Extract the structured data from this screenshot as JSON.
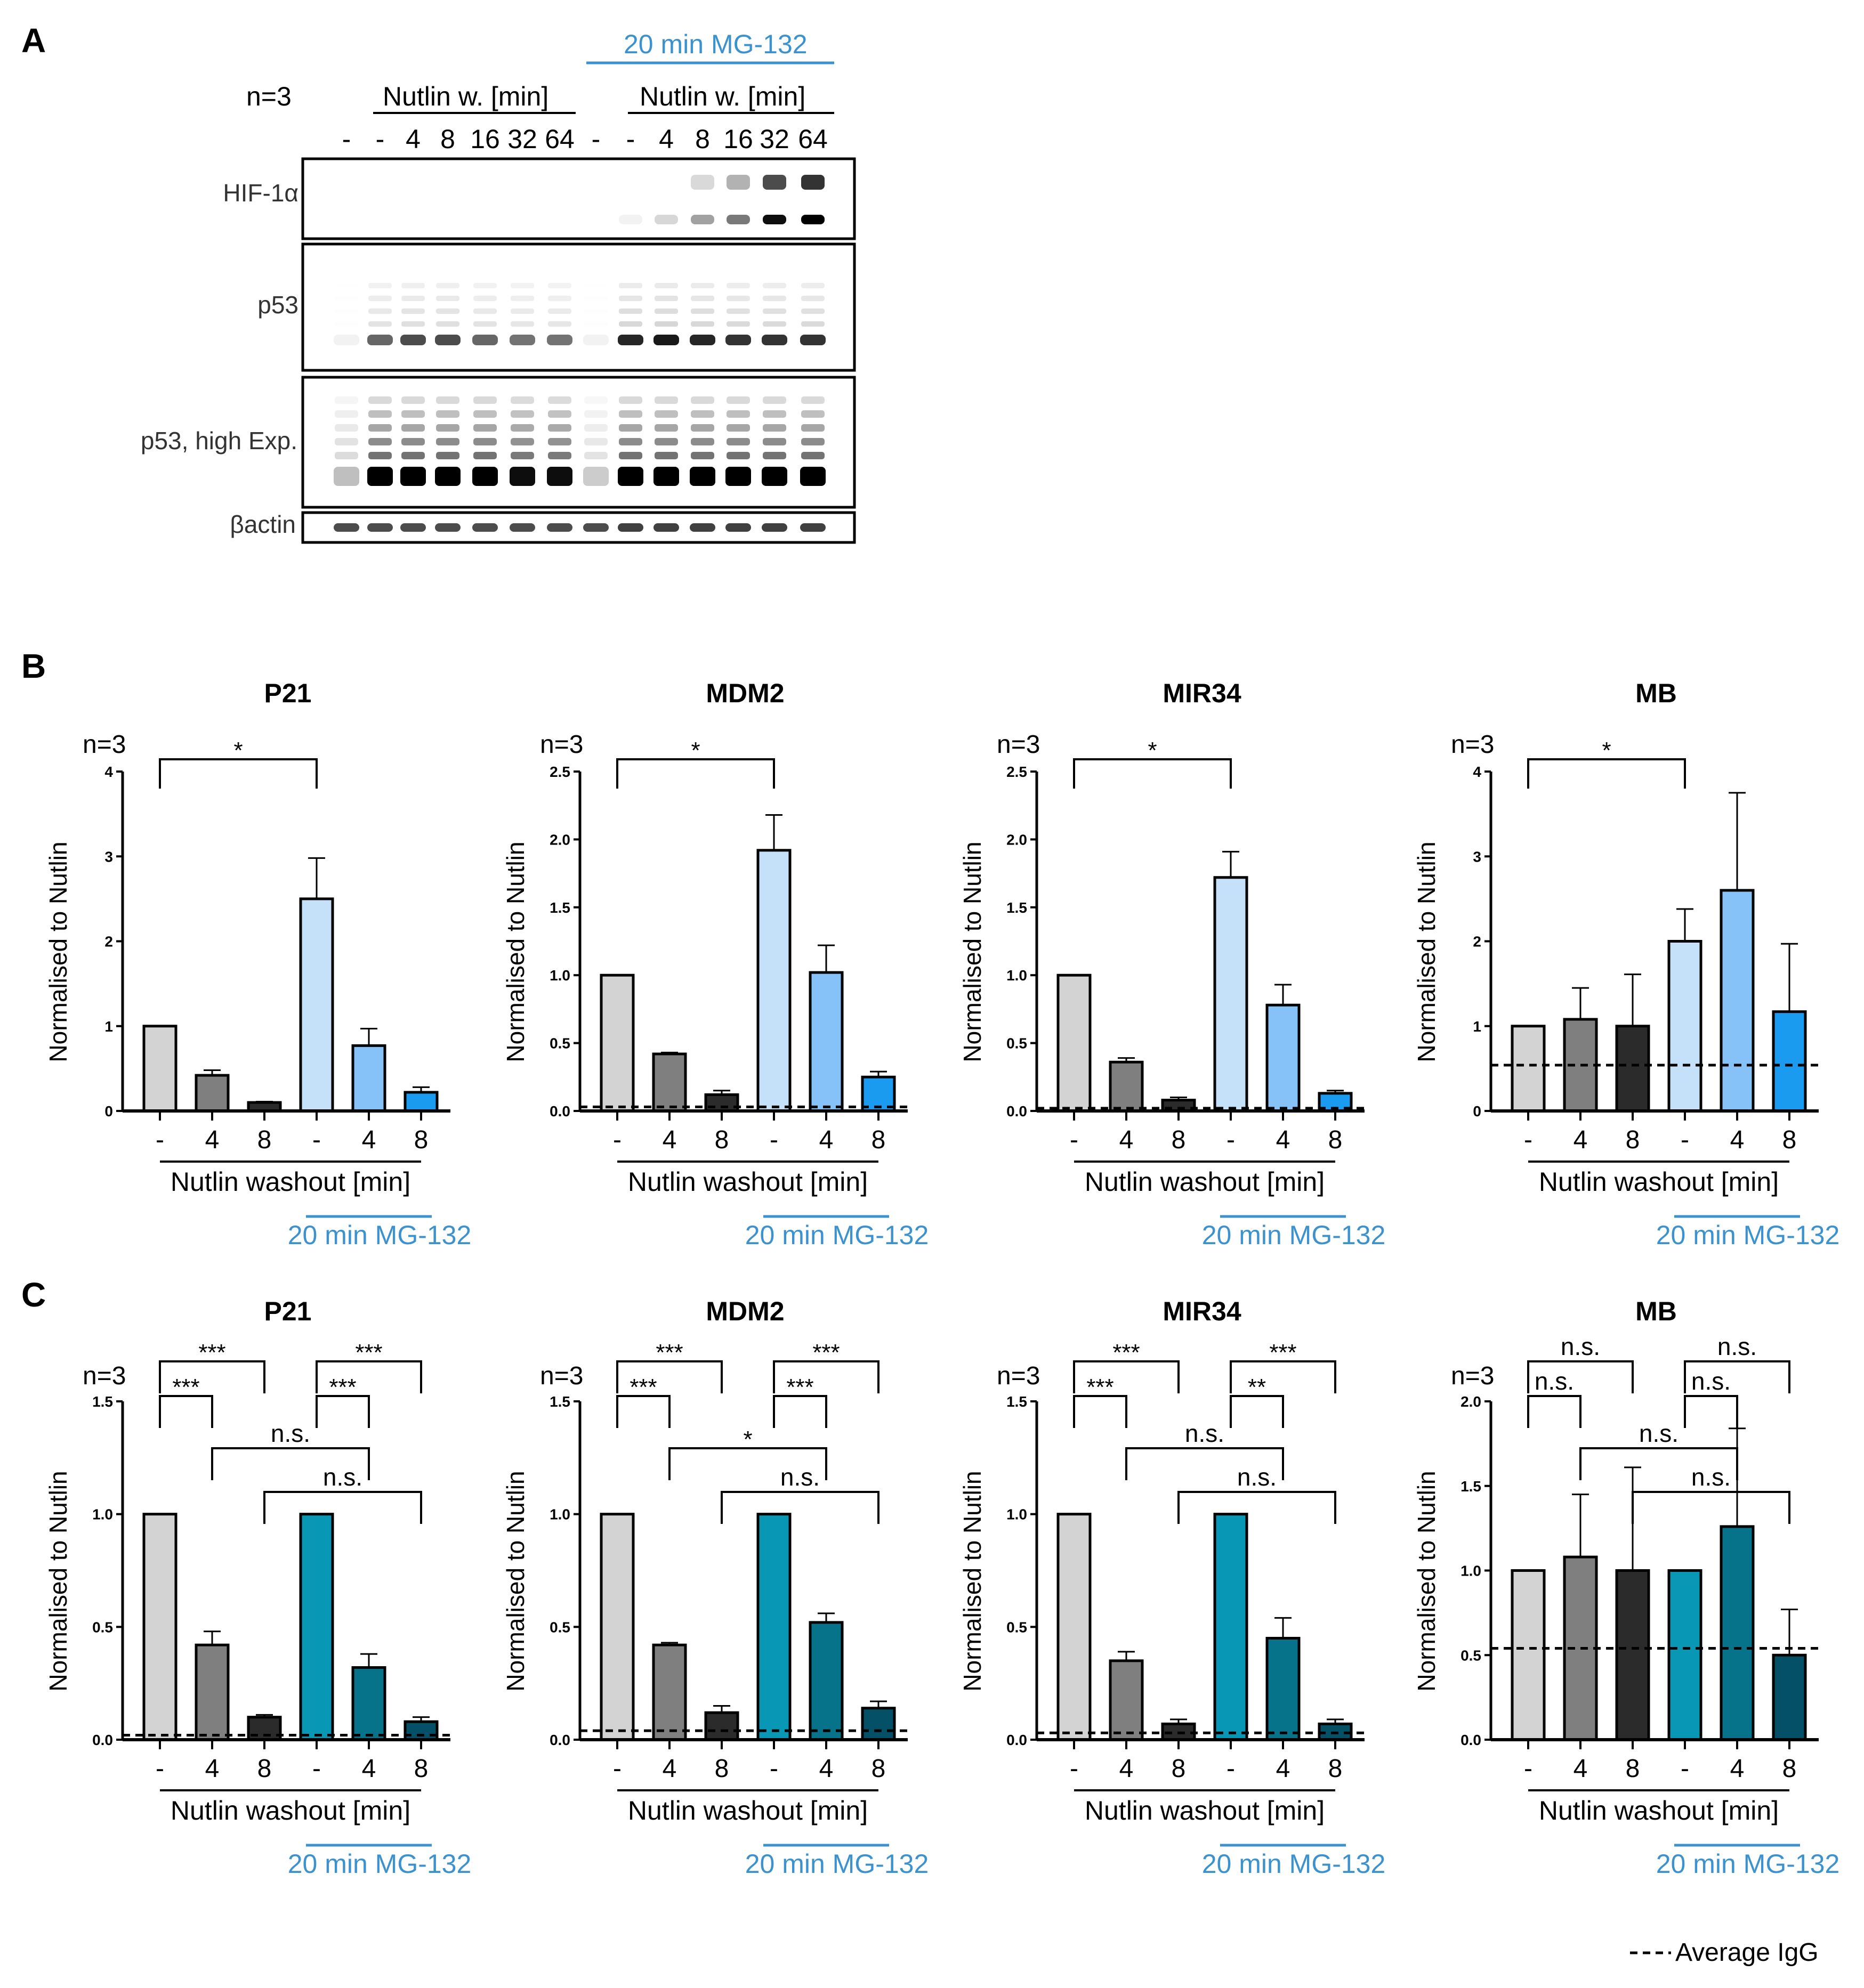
{
  "panel_labels": {
    "A": "A",
    "B": "B",
    "C": "C"
  },
  "blot": {
    "mg_label": "20 min MG-132",
    "n_label": "n=3",
    "group_label": "Nutlin w. [min]",
    "lane_labels": [
      "-",
      "-",
      "4",
      "8",
      "16",
      "32",
      "64",
      "-",
      "-",
      "4",
      "8",
      "16",
      "32",
      "64"
    ],
    "rows": [
      {
        "label": "HIF-1α"
      },
      {
        "label": "p53"
      },
      {
        "label": "p53, high Exp."
      },
      {
        "label": "βactin"
      }
    ],
    "intensity": {
      "hif": [
        0,
        0,
        0,
        0,
        0,
        0,
        0,
        0,
        0.05,
        0.15,
        0.35,
        0.5,
        0.9,
        1.0
      ],
      "p53": [
        0.05,
        0.6,
        0.7,
        0.7,
        0.6,
        0.55,
        0.55,
        0.05,
        0.85,
        0.9,
        0.85,
        0.8,
        0.8,
        0.8
      ],
      "p53h": [
        0.25,
        1.0,
        1.0,
        1.0,
        1.0,
        0.95,
        0.95,
        0.2,
        1.0,
        1.0,
        1.0,
        1.0,
        1.0,
        1.0
      ],
      "actin": [
        0.7,
        0.7,
        0.7,
        0.7,
        0.7,
        0.7,
        0.7,
        0.7,
        0.75,
        0.75,
        0.75,
        0.75,
        0.75,
        0.75
      ]
    }
  },
  "shared": {
    "ylabel": "Normalised to Nutlin",
    "xlabel": "Nutlin washout [min]",
    "mg_label": "20 min MG-132",
    "n_label": "n=3",
    "categories": [
      "-",
      "4",
      "8",
      "-",
      "4",
      "8"
    ],
    "legend_label": "Average IgG"
  },
  "chart_data": [
    {
      "panel": "B",
      "type": "bar",
      "title": "P21",
      "ylim": [
        0,
        4
      ],
      "yticks": [
        "0",
        "1",
        "2",
        "3",
        "4"
      ],
      "values": [
        1.0,
        0.42,
        0.1,
        2.5,
        0.77,
        0.22
      ],
      "errors": [
        0,
        0.06,
        0.01,
        0.48,
        0.2,
        0.06
      ],
      "igg": null,
      "colors": [
        "#d3d3d3",
        "#7f7f7f",
        "#2b2b2b",
        "#c5e1fa",
        "#86c1f7",
        "#1a9bf0"
      ],
      "sig": [
        {
          "from": 0,
          "to": 3,
          "label": "*",
          "level": 0
        }
      ]
    },
    {
      "panel": "B",
      "type": "bar",
      "title": "MDM2",
      "ylim": [
        0,
        2.5
      ],
      "yticks": [
        "0.0",
        "0.5",
        "1.0",
        "1.5",
        "2.0",
        "2.5"
      ],
      "values": [
        1.0,
        0.42,
        0.12,
        1.92,
        1.02,
        0.25
      ],
      "errors": [
        0,
        0.01,
        0.03,
        0.26,
        0.2,
        0.04
      ],
      "igg": 0.03,
      "colors": [
        "#d3d3d3",
        "#7f7f7f",
        "#2b2b2b",
        "#c5e1fa",
        "#86c1f7",
        "#1a9bf0"
      ],
      "sig": [
        {
          "from": 0,
          "to": 3,
          "label": "*",
          "level": 0
        }
      ]
    },
    {
      "panel": "B",
      "type": "bar",
      "title": "MIR34",
      "ylim": [
        0,
        2.5
      ],
      "yticks": [
        "0.0",
        "0.5",
        "1.0",
        "1.5",
        "2.0",
        "2.5"
      ],
      "values": [
        1.0,
        0.36,
        0.08,
        1.72,
        0.78,
        0.13
      ],
      "errors": [
        0,
        0.03,
        0.02,
        0.19,
        0.15,
        0.02
      ],
      "igg": 0.02,
      "colors": [
        "#d3d3d3",
        "#7f7f7f",
        "#2b2b2b",
        "#c5e1fa",
        "#86c1f7",
        "#1a9bf0"
      ],
      "sig": [
        {
          "from": 0,
          "to": 3,
          "label": "*",
          "level": 0
        }
      ]
    },
    {
      "panel": "B",
      "type": "bar",
      "title": "MB",
      "ylim": [
        0,
        4
      ],
      "yticks": [
        "0",
        "1",
        "2",
        "3",
        "4"
      ],
      "values": [
        1.0,
        1.08,
        1.0,
        2.0,
        2.6,
        1.17
      ],
      "errors": [
        0,
        0.37,
        0.61,
        0.38,
        1.15,
        0.8
      ],
      "igg": 0.54,
      "colors": [
        "#d3d3d3",
        "#7f7f7f",
        "#2b2b2b",
        "#c5e1fa",
        "#86c1f7",
        "#1a9bf0"
      ],
      "sig": [
        {
          "from": 0,
          "to": 3,
          "label": "*",
          "level": 0
        }
      ]
    },
    {
      "panel": "C",
      "type": "bar",
      "title": "P21",
      "ylim": [
        0,
        1.5
      ],
      "yticks": [
        "0.0",
        "0.5",
        "1.0",
        "1.5"
      ],
      "values": [
        1.0,
        0.42,
        0.1,
        1.0,
        0.32,
        0.08
      ],
      "errors": [
        0,
        0.06,
        0.01,
        0,
        0.06,
        0.02
      ],
      "igg": 0.02,
      "colors": [
        "#d3d3d3",
        "#7f7f7f",
        "#2b2b2b",
        "#0898b5",
        "#07738a",
        "#045066"
      ],
      "sig": [
        {
          "from": 0,
          "to": 2,
          "label": "***",
          "level": 2
        },
        {
          "from": 0,
          "to": 1,
          "label": "***",
          "level": 1
        },
        {
          "from": 3,
          "to": 5,
          "label": "***",
          "level": 2
        },
        {
          "from": 3,
          "to": 4,
          "label": "***",
          "level": 1
        },
        {
          "from": 1,
          "to": 4,
          "label": "n.s.",
          "level": 0.5
        },
        {
          "from": 2,
          "to": 5,
          "label": "n.s.",
          "level": 0
        }
      ]
    },
    {
      "panel": "C",
      "type": "bar",
      "title": "MDM2",
      "ylim": [
        0,
        1.5
      ],
      "yticks": [
        "0.0",
        "0.5",
        "1.0",
        "1.5"
      ],
      "values": [
        1.0,
        0.42,
        0.12,
        1.0,
        0.52,
        0.14
      ],
      "errors": [
        0,
        0.01,
        0.03,
        0,
        0.04,
        0.03
      ],
      "igg": 0.04,
      "colors": [
        "#d3d3d3",
        "#7f7f7f",
        "#2b2b2b",
        "#0898b5",
        "#07738a",
        "#045066"
      ],
      "sig": [
        {
          "from": 0,
          "to": 2,
          "label": "***",
          "level": 2
        },
        {
          "from": 0,
          "to": 1,
          "label": "***",
          "level": 1
        },
        {
          "from": 3,
          "to": 5,
          "label": "***",
          "level": 2
        },
        {
          "from": 3,
          "to": 4,
          "label": "***",
          "level": 1
        },
        {
          "from": 1,
          "to": 4,
          "label": "*",
          "level": 0.5
        },
        {
          "from": 2,
          "to": 5,
          "label": "n.s.",
          "level": 0
        }
      ]
    },
    {
      "panel": "C",
      "type": "bar",
      "title": "MIR34",
      "ylim": [
        0,
        1.5
      ],
      "yticks": [
        "0.0",
        "0.5",
        "1.0",
        "1.5"
      ],
      "values": [
        1.0,
        0.35,
        0.07,
        1.0,
        0.45,
        0.07
      ],
      "errors": [
        0,
        0.04,
        0.02,
        0,
        0.09,
        0.02
      ],
      "igg": 0.03,
      "colors": [
        "#d3d3d3",
        "#7f7f7f",
        "#2b2b2b",
        "#0898b5",
        "#07738a",
        "#045066"
      ],
      "sig": [
        {
          "from": 0,
          "to": 2,
          "label": "***",
          "level": 2
        },
        {
          "from": 0,
          "to": 1,
          "label": "***",
          "level": 1
        },
        {
          "from": 3,
          "to": 5,
          "label": "***",
          "level": 2
        },
        {
          "from": 3,
          "to": 4,
          "label": "**",
          "level": 1
        },
        {
          "from": 1,
          "to": 4,
          "label": "n.s.",
          "level": 0.5
        },
        {
          "from": 2,
          "to": 5,
          "label": "n.s.",
          "level": 0
        }
      ]
    },
    {
      "panel": "C",
      "type": "bar",
      "title": "MB",
      "ylim": [
        0,
        2.0
      ],
      "yticks": [
        "0.0",
        "0.5",
        "1.0",
        "1.5",
        "2.0"
      ],
      "values": [
        1.0,
        1.08,
        1.0,
        1.0,
        1.26,
        0.5
      ],
      "errors": [
        0,
        0.37,
        0.61,
        0,
        0.58,
        0.27
      ],
      "igg": 0.54,
      "colors": [
        "#d3d3d3",
        "#7f7f7f",
        "#2b2b2b",
        "#0898b5",
        "#07738a",
        "#045066"
      ],
      "sig": [
        {
          "from": 0,
          "to": 2,
          "label": "n.s.",
          "level": 2
        },
        {
          "from": 0,
          "to": 1,
          "label": "n.s.",
          "level": 1
        },
        {
          "from": 3,
          "to": 5,
          "label": "n.s.",
          "level": 2
        },
        {
          "from": 3,
          "to": 4,
          "label": "n.s.",
          "level": 1
        },
        {
          "from": 1,
          "to": 4,
          "label": "n.s.",
          "level": 0.5
        },
        {
          "from": 2,
          "to": 5,
          "label": "n.s.",
          "level": 0
        }
      ]
    }
  ]
}
